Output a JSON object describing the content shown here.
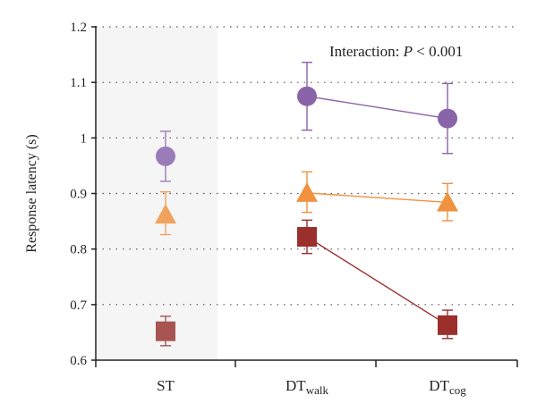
{
  "chart_data": {
    "type": "scatter",
    "title": "",
    "xlabel": "",
    "ylabel": "Response latency (s)",
    "ylim": [
      0.6,
      1.2
    ],
    "yticks": [
      0.6,
      0.7,
      0.8,
      0.9,
      1,
      1.1,
      1.2
    ],
    "ytick_labels": [
      "0.6",
      "0.7",
      "0.8",
      "0.9",
      "1",
      "1.1",
      "1.2"
    ],
    "categories": [
      {
        "main": "ST",
        "sub": ""
      },
      {
        "main": "DT",
        "sub": "walk"
      },
      {
        "main": "DT",
        "sub": "cog"
      }
    ],
    "grid": "horizontal dotted",
    "shaded_region": "ST",
    "annotation": {
      "prefix": "Interaction: ",
      "italic": "P",
      "suffix": " < 0.001"
    },
    "series": [
      {
        "marker": "circle",
        "color": "#8a64a8",
        "st_color": "#9a7cb8",
        "values": [
          0.967,
          1.075,
          1.035
        ],
        "err_low": [
          0.922,
          1.014,
          0.972
        ],
        "err_high": [
          1.012,
          1.136,
          1.098
        ]
      },
      {
        "marker": "triangle",
        "color": "#f0923f",
        "st_color": "#f2a25f",
        "values": [
          0.862,
          0.901,
          0.884
        ],
        "err_low": [
          0.826,
          0.866,
          0.851
        ],
        "err_high": [
          0.903,
          0.939,
          0.918
        ]
      },
      {
        "marker": "square",
        "color": "#9b2f2c",
        "st_color": "#a85452",
        "values": [
          0.652,
          0.822,
          0.663
        ],
        "err_low": [
          0.626,
          0.792,
          0.639
        ],
        "err_high": [
          0.679,
          0.852,
          0.69
        ]
      }
    ]
  }
}
